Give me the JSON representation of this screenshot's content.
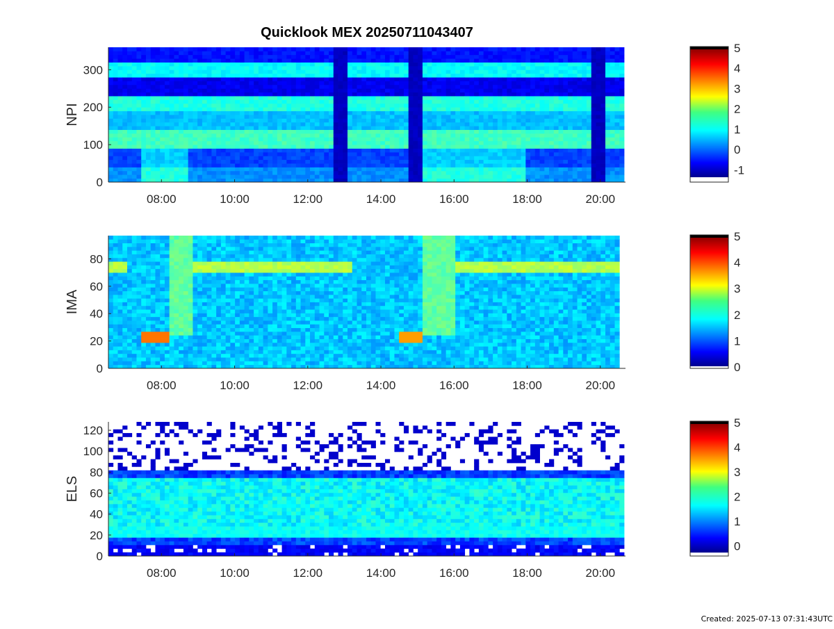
{
  "title": "Quicklook MEX 20250711043407",
  "footer": "Created: 2025-07-13 07:31:43UTC",
  "chart_data": [
    {
      "type": "heatmap",
      "panel": "NPI",
      "ylabel": "NPI",
      "x_ticks": [
        "08:00",
        "10:00",
        "12:00",
        "14:00",
        "16:00",
        "18:00",
        "20:00"
      ],
      "x_range_hours": [
        6.55,
        20.65
      ],
      "ylim": [
        0,
        360
      ],
      "y_ticks": [
        0,
        100,
        200,
        300
      ],
      "colorbar": {
        "ticks": [
          -1,
          0,
          1,
          2,
          3,
          4,
          5
        ],
        "range": [
          -1.4,
          5
        ],
        "colormap": "jet"
      },
      "horizontal_bands": [
        {
          "y0": 0,
          "y1": 45,
          "level": 0.3
        },
        {
          "y0": 45,
          "y1": 90,
          "level": -0.2
        },
        {
          "y0": 90,
          "y1": 140,
          "level": 1.4
        },
        {
          "y0": 140,
          "y1": 185,
          "level": 0.6
        },
        {
          "y0": 185,
          "y1": 230,
          "level": 1.2
        },
        {
          "y0": 230,
          "y1": 285,
          "level": -0.7
        },
        {
          "y0": 285,
          "y1": 325,
          "level": 1.0
        },
        {
          "y0": 325,
          "y1": 360,
          "level": -0.5
        }
      ],
      "gaps_hours": [
        [
          12.7,
          13.15
        ],
        [
          14.7,
          15.15
        ],
        [
          17.95,
          18.0
        ],
        [
          19.7,
          20.1
        ]
      ],
      "enhanced_hours": [
        [
          7.5,
          8.7
        ],
        [
          15.2,
          17.9
        ]
      ]
    },
    {
      "type": "heatmap",
      "panel": "IMA",
      "ylabel": "IMA",
      "x_ticks": [
        "08:00",
        "10:00",
        "12:00",
        "14:00",
        "16:00",
        "18:00",
        "20:00"
      ],
      "x_range_hours": [
        6.55,
        20.65
      ],
      "ylim": [
        0,
        97
      ],
      "y_ticks": [
        0,
        20,
        40,
        60,
        80
      ],
      "colorbar": {
        "ticks": [
          0,
          1,
          2,
          3,
          4,
          5
        ],
        "range": [
          0,
          5
        ],
        "colormap": "jet"
      },
      "background_level": 1.6,
      "bright_line_y": 73,
      "bright_line_hours": [
        [
          6.6,
          7.0
        ],
        [
          8.9,
          13.2
        ],
        [
          16.0,
          20.5
        ]
      ],
      "low_energy_peak": [
        {
          "hours": [
            7.5,
            8.2
          ],
          "y": 22,
          "level": 3.8
        },
        {
          "hours": [
            14.5,
            15.2
          ],
          "y": 22,
          "level": 3.6
        }
      ],
      "data_end_hours": 20.5
    },
    {
      "type": "heatmap",
      "panel": "ELS",
      "ylabel": "ELS",
      "x_ticks": [
        "08:00",
        "10:00",
        "12:00",
        "14:00",
        "16:00",
        "18:00",
        "20:00"
      ],
      "x_range_hours": [
        6.55,
        20.65
      ],
      "ylim": [
        0,
        128
      ],
      "y_ticks": [
        0,
        20,
        40,
        60,
        80,
        100,
        120
      ],
      "colorbar": {
        "ticks": [
          0,
          1,
          2,
          3,
          4,
          5
        ],
        "range": [
          -0.3,
          5
        ],
        "colormap": "jet"
      },
      "noise_floor_y": 82,
      "green_band_y": [
        30,
        75
      ],
      "bright_stripe_y": 23
    }
  ]
}
